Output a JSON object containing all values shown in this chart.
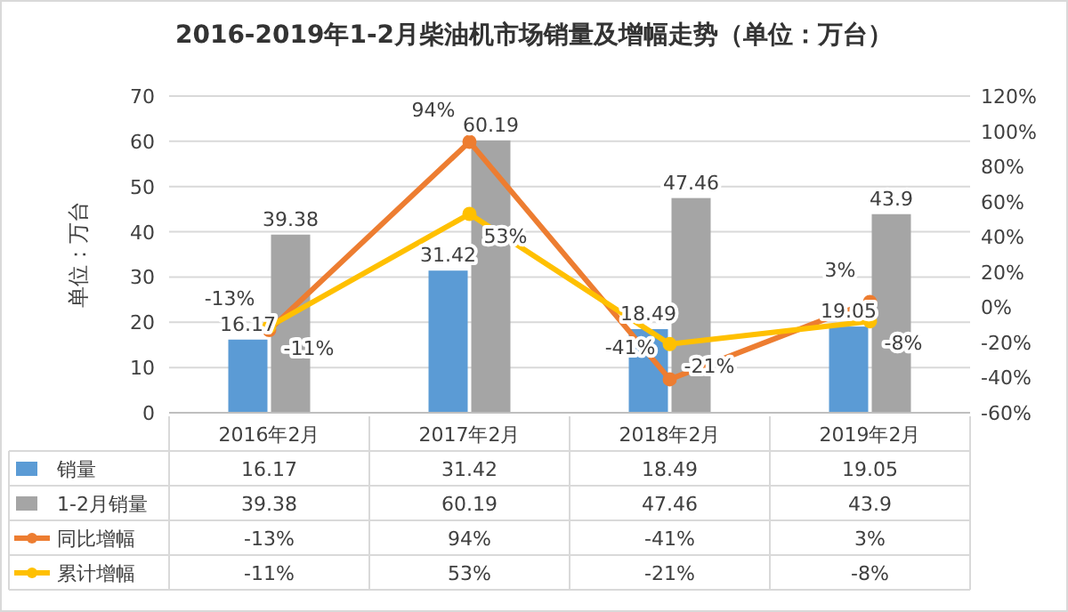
{
  "chart_data": {
    "type": "bar",
    "title": "2016-2019年1-2月柴油机市场销量及增幅走势（单位：万台）",
    "ylabel": "单位：万台",
    "categories": [
      "2016年2月",
      "2017年2月",
      "2018年2月",
      "2019年2月"
    ],
    "series": [
      {
        "name": "销量",
        "color": "#5b9bd5",
        "values": [
          16.17,
          31.42,
          18.49,
          19.05
        ],
        "value_labels": [
          "16.17",
          "31.42",
          "18.49",
          "19.05"
        ]
      },
      {
        "name": "1-2月销量",
        "color": "#a5a5a5",
        "values": [
          39.38,
          60.19,
          47.46,
          43.9
        ],
        "value_labels": [
          "39.38",
          "60.19",
          "47.46",
          "43.9"
        ]
      },
      {
        "name": "同比增幅",
        "type": "line",
        "axis": "y2",
        "color": "#ed7d31",
        "values": [
          -13,
          94,
          -41,
          3
        ],
        "value_labels": [
          "-13%",
          "94%",
          "-41%",
          "3%"
        ]
      },
      {
        "name": "累计增幅",
        "type": "line",
        "axis": "y2",
        "color": "#ffc000",
        "values": [
          -11,
          53,
          -21,
          -8
        ],
        "value_labels": [
          "-11%",
          "53%",
          "-21%",
          "-8%"
        ]
      }
    ],
    "ylim": [
      0,
      70
    ],
    "yticks": [
      0,
      10,
      20,
      30,
      40,
      50,
      60,
      70
    ],
    "y2lim": [
      -60,
      120
    ],
    "y2ticks": [
      {
        "value": -60,
        "label": "-60%"
      },
      {
        "value": -40,
        "label": "-40%"
      },
      {
        "value": -20,
        "label": "-20%"
      },
      {
        "value": 0,
        "label": "0%"
      },
      {
        "value": 20,
        "label": "20%"
      },
      {
        "value": 40,
        "label": "40%"
      },
      {
        "value": 60,
        "label": "60%"
      },
      {
        "value": 80,
        "label": "80%"
      },
      {
        "value": 100,
        "label": "100%"
      },
      {
        "value": 120,
        "label": "120%"
      }
    ],
    "grid": "y",
    "marker": "circle",
    "legend": "bottom"
  }
}
